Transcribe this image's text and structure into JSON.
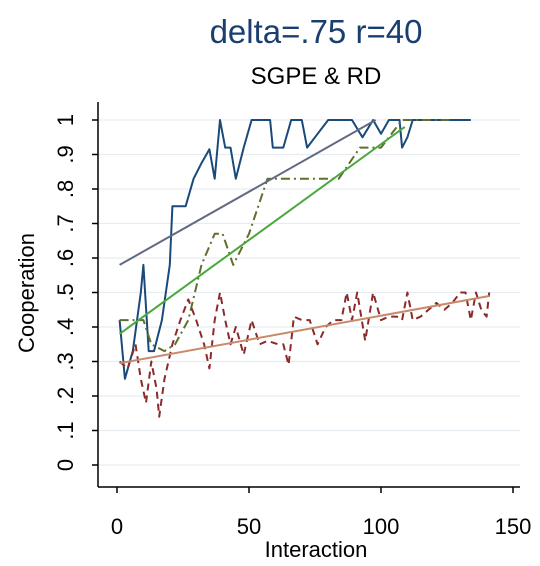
{
  "chart_data": {
    "type": "line",
    "title": "delta=.75 r=40",
    "subtitle": "SGPE & RD",
    "xlabel": "Interaction",
    "ylabel": "Cooperation",
    "xlim": [
      0,
      150
    ],
    "ylim": [
      0,
      1
    ],
    "x_ticks": [
      "0",
      "50",
      "100",
      "150"
    ],
    "y_ticks": [
      "0",
      ".1",
      ".2",
      ".3",
      ".4",
      ".5",
      ".6",
      ".7",
      ".8",
      ".9",
      "1"
    ],
    "grid": true,
    "legend": "none",
    "series": [
      {
        "color": "#1a4a7a",
        "style": "solid",
        "points": [
          [
            1,
            0.42
          ],
          [
            3,
            0.25
          ],
          [
            6,
            0.33
          ],
          [
            9,
            0.5
          ],
          [
            10,
            0.58
          ],
          [
            12,
            0.33
          ],
          [
            14,
            0.33
          ],
          [
            17,
            0.42
          ],
          [
            20,
            0.58
          ],
          [
            21,
            0.75
          ],
          [
            26,
            0.75
          ],
          [
            29,
            0.83
          ],
          [
            32,
            0.875
          ],
          [
            35,
            0.915
          ],
          [
            37,
            0.83
          ],
          [
            39,
            1.0
          ],
          [
            41,
            0.92
          ],
          [
            43,
            0.92
          ],
          [
            45,
            0.83
          ],
          [
            48,
            0.92
          ],
          [
            51,
            1.0
          ],
          [
            56,
            1.0
          ],
          [
            58,
            1.0
          ],
          [
            59,
            0.92
          ],
          [
            63,
            0.92
          ],
          [
            66,
            1.0
          ],
          [
            70,
            1.0
          ],
          [
            72,
            0.92
          ],
          [
            76,
            0.96
          ],
          [
            80,
            1.0
          ],
          [
            86,
            1.0
          ],
          [
            89,
            1.0
          ],
          [
            93,
            0.95
          ],
          [
            97,
            1.0
          ],
          [
            100,
            0.96
          ],
          [
            103,
            1.0
          ],
          [
            107,
            1.0
          ],
          [
            108,
            0.92
          ],
          [
            110,
            0.95
          ],
          [
            112,
            1.0
          ],
          [
            134,
            1.0
          ]
        ]
      },
      {
        "color": "#5f6f2c",
        "style": "dashdot",
        "points": [
          [
            1,
            0.42
          ],
          [
            10,
            0.42
          ],
          [
            13,
            0.35
          ],
          [
            18,
            0.33
          ],
          [
            22,
            0.35
          ],
          [
            27,
            0.42
          ],
          [
            32,
            0.58
          ],
          [
            37,
            0.67
          ],
          [
            40,
            0.67
          ],
          [
            44,
            0.58
          ],
          [
            50,
            0.67
          ],
          [
            57,
            0.83
          ],
          [
            64,
            0.83
          ],
          [
            72,
            0.83
          ],
          [
            84,
            0.83
          ],
          [
            92,
            0.92
          ],
          [
            100,
            0.92
          ],
          [
            108,
            1.0
          ],
          [
            120,
            1.0
          ],
          [
            126,
            1.0
          ]
        ]
      },
      {
        "color": "#8a2a2a",
        "style": "dashed",
        "points": [
          [
            1,
            0.3
          ],
          [
            4,
            0.28
          ],
          [
            7,
            0.35
          ],
          [
            9,
            0.25
          ],
          [
            11,
            0.18
          ],
          [
            13,
            0.3
          ],
          [
            15,
            0.22
          ],
          [
            16,
            0.14
          ],
          [
            18,
            0.25
          ],
          [
            21,
            0.35
          ],
          [
            24,
            0.42
          ],
          [
            27,
            0.48
          ],
          [
            30,
            0.42
          ],
          [
            33,
            0.35
          ],
          [
            35,
            0.28
          ],
          [
            37,
            0.42
          ],
          [
            39,
            0.5
          ],
          [
            41,
            0.42
          ],
          [
            43,
            0.35
          ],
          [
            45,
            0.4
          ],
          [
            48,
            0.32
          ],
          [
            51,
            0.42
          ],
          [
            54,
            0.35
          ],
          [
            57,
            0.36
          ],
          [
            61,
            0.35
          ],
          [
            63,
            0.35
          ],
          [
            65,
            0.29
          ],
          [
            67,
            0.43
          ],
          [
            70,
            0.42
          ],
          [
            73,
            0.42
          ],
          [
            76,
            0.35
          ],
          [
            79,
            0.4
          ],
          [
            82,
            0.42
          ],
          [
            85,
            0.42
          ],
          [
            87,
            0.5
          ],
          [
            89,
            0.42
          ],
          [
            91,
            0.5
          ],
          [
            94,
            0.36
          ],
          [
            97,
            0.5
          ],
          [
            100,
            0.42
          ],
          [
            103,
            0.43
          ],
          [
            106,
            0.43
          ],
          [
            108,
            0.42
          ],
          [
            110,
            0.5
          ],
          [
            112,
            0.42
          ],
          [
            115,
            0.43
          ],
          [
            118,
            0.45
          ],
          [
            121,
            0.47
          ],
          [
            124,
            0.45
          ],
          [
            127,
            0.47
          ],
          [
            130,
            0.5
          ],
          [
            132,
            0.5
          ],
          [
            134,
            0.42
          ],
          [
            136,
            0.5
          ],
          [
            138,
            0.45
          ],
          [
            140,
            0.43
          ],
          [
            141,
            0.5
          ]
        ]
      },
      {
        "color": "#626a82",
        "style": "solid",
        "points": [
          [
            1,
            0.58
          ],
          [
            98,
            1.0
          ]
        ]
      },
      {
        "color": "#49a83c",
        "style": "solid",
        "points": [
          [
            1,
            0.38
          ],
          [
            109,
            0.98
          ]
        ]
      },
      {
        "color": "#c9896a",
        "style": "solid",
        "points": [
          [
            1,
            0.295
          ],
          [
            141,
            0.49
          ]
        ]
      }
    ]
  }
}
